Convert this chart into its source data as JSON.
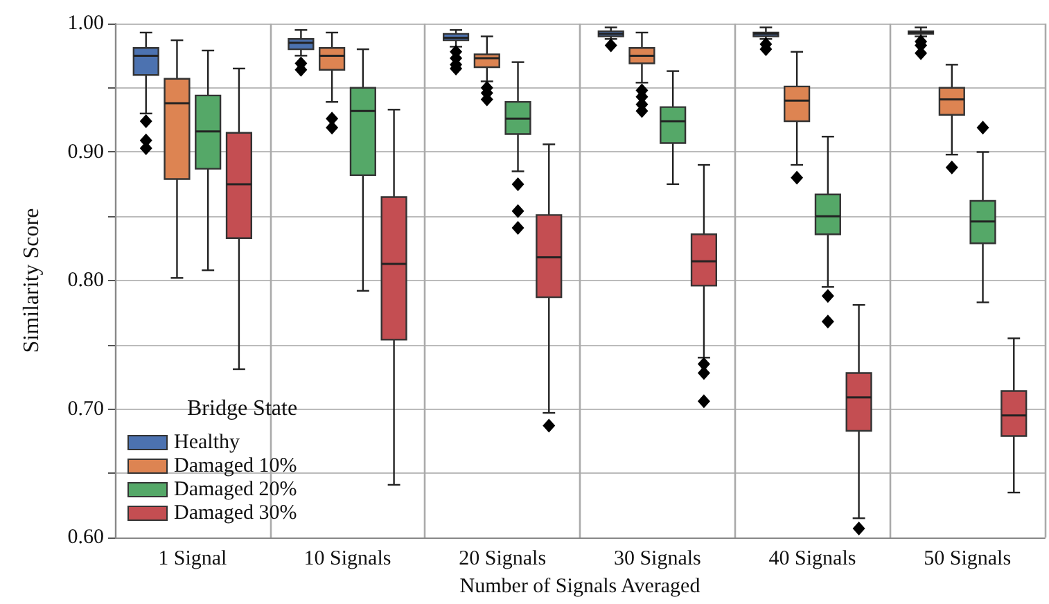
{
  "chart_data": {
    "type": "box",
    "xlabel": "Number of Signals Averaged",
    "ylabel": "Similarity Score",
    "legend_title": "Bridge State",
    "categories": [
      "1 Signal",
      "10 Signals",
      "20 Signals",
      "30 Signals",
      "40 Signals",
      "50 Signals"
    ],
    "ylim": [
      0.6,
      1.0
    ],
    "yticks": [
      {
        "value": 0.6,
        "label": "0.60"
      },
      {
        "value": 0.65,
        "label": null
      },
      {
        "value": 0.7,
        "label": "0.70"
      },
      {
        "value": 0.75,
        "label": null
      },
      {
        "value": 0.8,
        "label": "0.80"
      },
      {
        "value": 0.85,
        "label": null
      },
      {
        "value": 0.9,
        "label": "0.90"
      },
      {
        "value": 0.95,
        "label": null
      },
      {
        "value": 1.0,
        "label": "1.00"
      }
    ],
    "grid": true,
    "legend": "bottom left",
    "marker": "diamond",
    "series": [
      {
        "name": "Healthy",
        "color": "#4c72b0",
        "boxes": [
          {
            "low": 0.93,
            "q1": 0.96,
            "median": 0.975,
            "q3": 0.981,
            "high": 0.993,
            "outliers": [
              0.924,
              0.909,
              0.903
            ]
          },
          {
            "low": 0.975,
            "q1": 0.98,
            "median": 0.985,
            "q3": 0.988,
            "high": 0.995,
            "outliers": [
              0.969,
              0.964
            ]
          },
          {
            "low": 0.982,
            "q1": 0.987,
            "median": 0.989,
            "q3": 0.992,
            "high": 0.995,
            "outliers": [
              0.978,
              0.973,
              0.968,
              0.965
            ]
          },
          {
            "low": 0.988,
            "q1": 0.99,
            "median": 0.992,
            "q3": 0.994,
            "high": 0.997,
            "outliers": [
              0.983
            ]
          },
          {
            "low": 0.988,
            "q1": 0.99,
            "median": 0.992,
            "q3": 0.993,
            "high": 0.997,
            "outliers": [
              0.984,
              0.98
            ]
          },
          {
            "low": 0.99,
            "q1": 0.992,
            "median": 0.993,
            "q3": 0.994,
            "high": 0.997,
            "outliers": [
              0.986,
              0.983,
              0.977
            ]
          }
        ]
      },
      {
        "name": "Damaged 10%",
        "color": "#dd8452",
        "boxes": [
          {
            "low": 0.802,
            "q1": 0.879,
            "median": 0.938,
            "q3": 0.957,
            "high": 0.987
          },
          {
            "low": 0.939,
            "q1": 0.964,
            "median": 0.975,
            "q3": 0.981,
            "high": 0.993,
            "outliers": [
              0.926,
              0.919
            ]
          },
          {
            "low": 0.955,
            "q1": 0.966,
            "median": 0.973,
            "q3": 0.976,
            "high": 0.99,
            "outliers": [
              0.95,
              0.946,
              0.941
            ]
          },
          {
            "low": 0.954,
            "q1": 0.969,
            "median": 0.975,
            "q3": 0.981,
            "high": 0.993,
            "outliers": [
              0.948,
              0.943,
              0.937,
              0.932
            ]
          },
          {
            "low": 0.89,
            "q1": 0.924,
            "median": 0.94,
            "q3": 0.951,
            "high": 0.978,
            "outliers": [
              0.88
            ]
          },
          {
            "low": 0.898,
            "q1": 0.929,
            "median": 0.941,
            "q3": 0.95,
            "high": 0.968,
            "outliers": [
              0.888
            ]
          }
        ]
      },
      {
        "name": "Damaged 20%",
        "color": "#55a868",
        "boxes": [
          {
            "low": 0.808,
            "q1": 0.887,
            "median": 0.916,
            "q3": 0.944,
            "high": 0.979
          },
          {
            "low": 0.792,
            "q1": 0.882,
            "median": 0.932,
            "q3": 0.95,
            "high": 0.98
          },
          {
            "low": 0.885,
            "q1": 0.914,
            "median": 0.926,
            "q3": 0.939,
            "high": 0.97,
            "outliers": [
              0.875,
              0.854,
              0.841
            ]
          },
          {
            "low": 0.875,
            "q1": 0.907,
            "median": 0.924,
            "q3": 0.935,
            "high": 0.963
          },
          {
            "low": 0.795,
            "q1": 0.836,
            "median": 0.85,
            "q3": 0.867,
            "high": 0.912,
            "outliers": [
              0.788,
              0.768
            ]
          },
          {
            "low": 0.783,
            "q1": 0.829,
            "median": 0.846,
            "q3": 0.862,
            "high": 0.9,
            "outliers": [
              0.919
            ]
          }
        ]
      },
      {
        "name": "Damaged 30%",
        "color": "#c44e52",
        "boxes": [
          {
            "low": 0.731,
            "q1": 0.833,
            "median": 0.875,
            "q3": 0.915,
            "high": 0.965
          },
          {
            "low": 0.641,
            "q1": 0.754,
            "median": 0.813,
            "q3": 0.865,
            "high": 0.933
          },
          {
            "low": 0.697,
            "q1": 0.787,
            "median": 0.818,
            "q3": 0.851,
            "high": 0.906,
            "outliers": [
              0.687
            ]
          },
          {
            "low": 0.74,
            "q1": 0.796,
            "median": 0.815,
            "q3": 0.836,
            "high": 0.89,
            "outliers": [
              0.735,
              0.728,
              0.706
            ]
          },
          {
            "low": 0.615,
            "q1": 0.683,
            "median": 0.709,
            "q3": 0.728,
            "high": 0.781,
            "outliers": [
              0.607
            ]
          },
          {
            "low": 0.635,
            "q1": 0.679,
            "median": 0.695,
            "q3": 0.714,
            "high": 0.755
          }
        ]
      }
    ]
  }
}
